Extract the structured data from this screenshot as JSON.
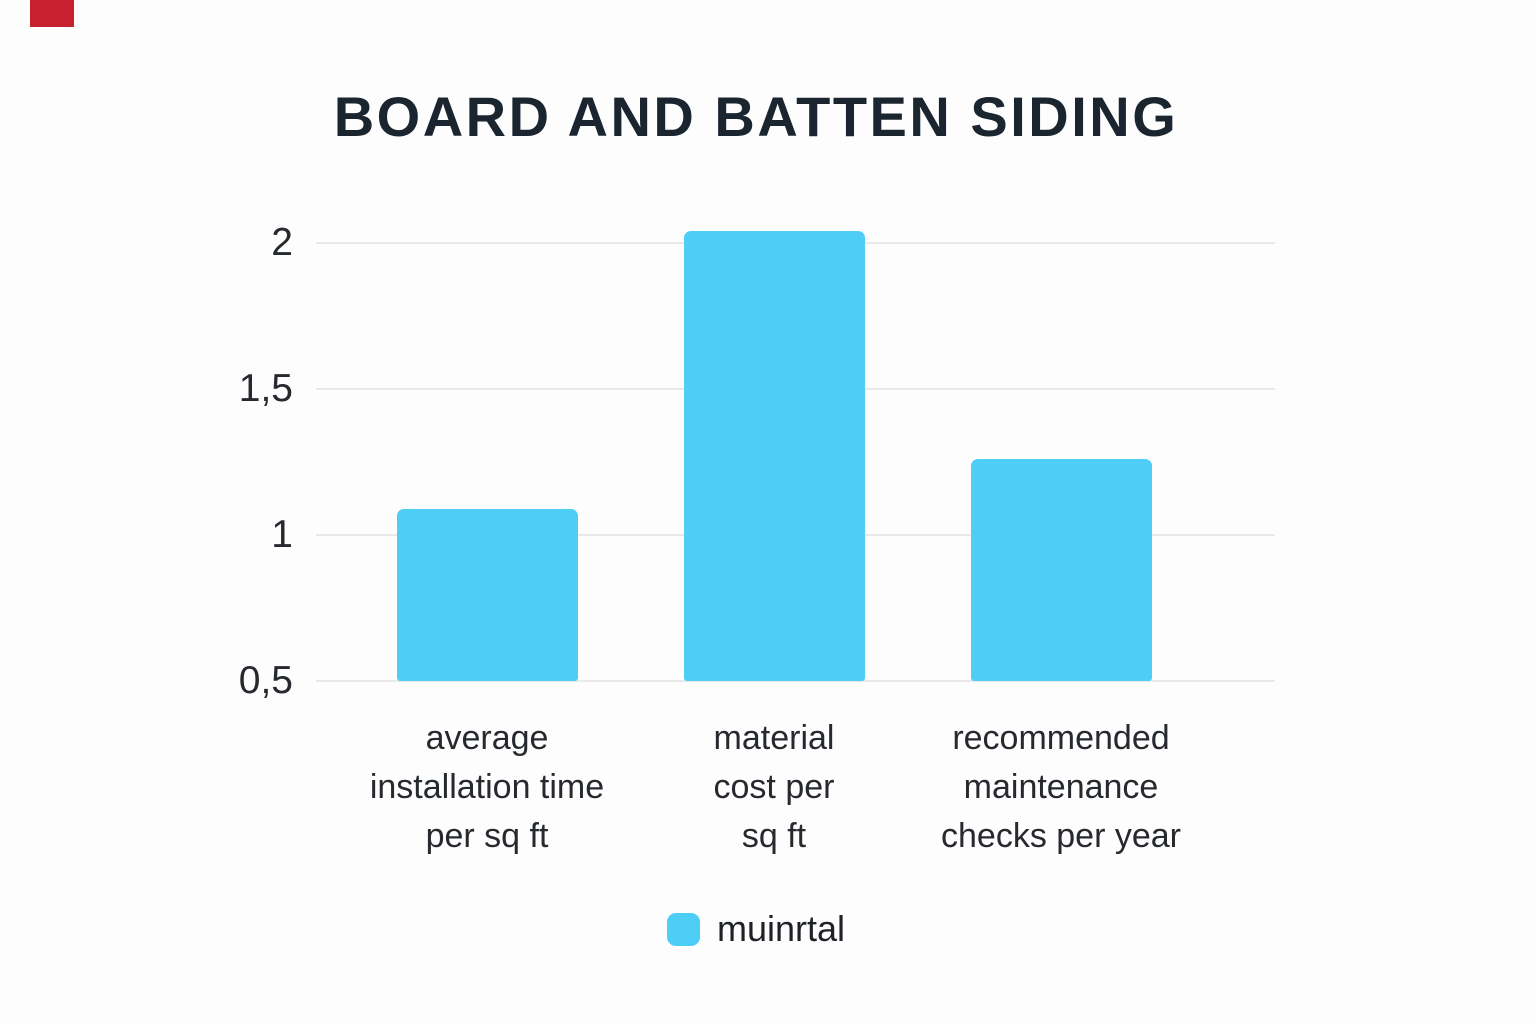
{
  "page": {
    "background": "#fdfdfd"
  },
  "marker": {
    "color": "#c8202f"
  },
  "chart_data": {
    "type": "bar",
    "title": "BOARD AND BATTEN SIDING",
    "categories": [
      "average installation time per sq ft",
      "material cost per sq ft",
      "recommended maintenance checks per year"
    ],
    "category_lines": [
      [
        "average",
        "installation time",
        "per sq ft"
      ],
      [
        "material",
        "cost per",
        "sq ft"
      ],
      [
        "recommended",
        "maintenance",
        "checks per year"
      ]
    ],
    "series": [
      {
        "name": "muinrtal",
        "color": "#4ecdf6",
        "values": [
          1.09,
          2.04,
          1.26
        ]
      }
    ],
    "xlabel": "",
    "ylabel": "",
    "y_axis": {
      "min": 0.5,
      "max": 2.1,
      "tick_values": [
        0.5,
        1,
        1.5,
        2
      ],
      "tick_labels": [
        "0,5",
        "1",
        "1,5",
        "2"
      ],
      "decimal_separator": ","
    },
    "grid": true,
    "legend": {
      "position": "bottom",
      "label": "muinrtal"
    },
    "colors": {
      "grid": "#e9e9e9",
      "title": "#1b2530",
      "axis_text": "#26292e",
      "background": "#fdfdfd"
    }
  }
}
